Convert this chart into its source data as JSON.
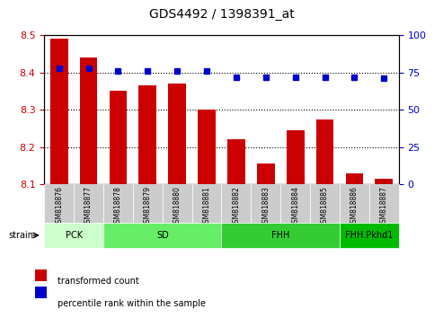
{
  "title": "GDS4492 / 1398391_at",
  "samples": [
    "GSM818876",
    "GSM818877",
    "GSM818878",
    "GSM818879",
    "GSM818880",
    "GSM818881",
    "GSM818882",
    "GSM818883",
    "GSM818884",
    "GSM818885",
    "GSM818886",
    "GSM818887"
  ],
  "transformed_count": [
    8.49,
    8.44,
    8.35,
    8.365,
    8.37,
    8.3,
    8.22,
    8.155,
    8.245,
    8.275,
    8.13,
    8.115
  ],
  "percentile_rank": [
    78,
    78,
    76,
    76,
    76,
    76,
    72,
    72,
    72,
    72,
    72,
    71
  ],
  "bar_color": "#cc0000",
  "dot_color": "#0000cc",
  "ylim_left": [
    8.1,
    8.5
  ],
  "ylim_right": [
    0,
    100
  ],
  "yticks_left": [
    8.1,
    8.2,
    8.3,
    8.4,
    8.5
  ],
  "yticks_right": [
    0,
    25,
    50,
    75,
    100
  ],
  "groups": [
    {
      "label": "PCK",
      "start": 0,
      "end": 2,
      "color": "#ccffcc"
    },
    {
      "label": "SD",
      "start": 2,
      "end": 5,
      "color": "#66ee66"
    },
    {
      "label": "FHH",
      "start": 6,
      "end": 9,
      "color": "#33cc33"
    },
    {
      "label": "FHH.Pkhd1",
      "start": 9,
      "end": 11,
      "color": "#00bb00"
    }
  ],
  "legend_bar_label": "transformed count",
  "legend_dot_label": "percentile rank within the sample",
  "strain_label": "strain",
  "background_color": "#ffffff",
  "axes_bg_color": "#ffffff"
}
